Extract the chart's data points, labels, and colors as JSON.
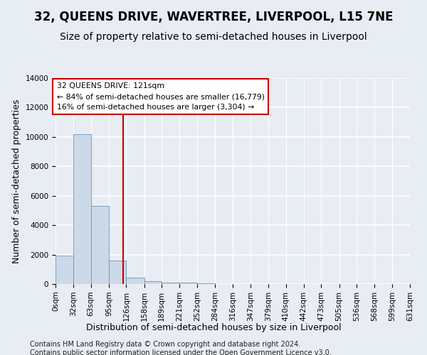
{
  "title": "32, QUEENS DRIVE, WAVERTREE, LIVERPOOL, L15 7NE",
  "subtitle": "Size of property relative to semi-detached houses in Liverpool",
  "xlabel": "Distribution of semi-detached houses by size in Liverpool",
  "ylabel": "Number of semi-detached properties",
  "bar_color": "#ccd9e8",
  "bar_edge_color": "#6699bb",
  "vline_color": "#cc0000",
  "property_size": 121,
  "annotation_line1": "32 QUEENS DRIVE: 121sqm",
  "annotation_line2": "← 84% of semi-detached houses are smaller (16,779)",
  "annotation_line3": "16% of semi-detached houses are larger (3,304) →",
  "bin_edges": [
    0,
    32,
    63,
    95,
    126,
    158,
    189,
    221,
    252,
    284,
    316,
    347,
    379,
    410,
    442,
    473,
    505,
    536,
    568,
    599,
    631
  ],
  "bar_heights": [
    1950,
    10200,
    5300,
    1600,
    450,
    200,
    120,
    80,
    60,
    0,
    0,
    0,
    0,
    0,
    0,
    0,
    0,
    0,
    0,
    0
  ],
  "ylim": [
    0,
    14000
  ],
  "yticks": [
    0,
    2000,
    4000,
    6000,
    8000,
    10000,
    12000,
    14000
  ],
  "xlim": [
    0,
    631
  ],
  "footnote1": "Contains HM Land Registry data © Crown copyright and database right 2024.",
  "footnote2": "Contains public sector information licensed under the Open Government Licence v3.0.",
  "bg_color": "#e8edf3",
  "grid_color": "#ffffff",
  "title_fontsize": 12,
  "subtitle_fontsize": 10,
  "axis_label_fontsize": 9,
  "tick_fontsize": 7.5,
  "footnote_fontsize": 7
}
